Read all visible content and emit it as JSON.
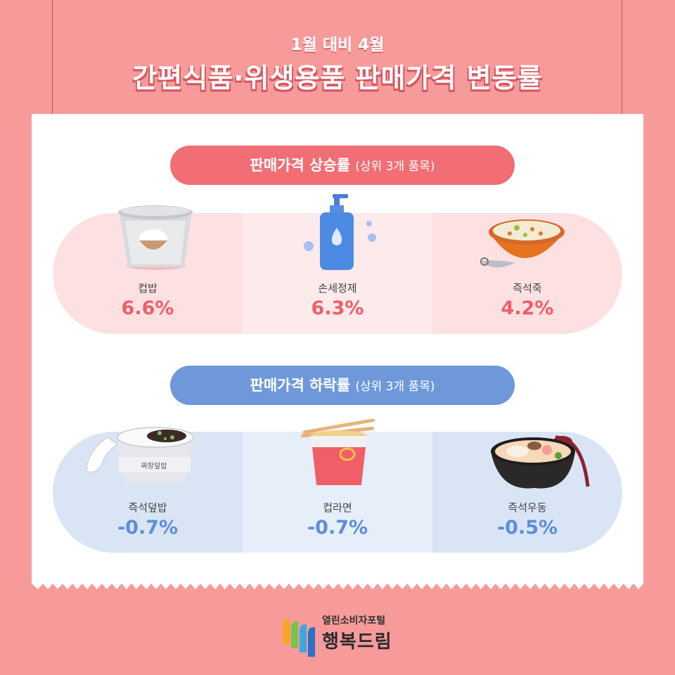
{
  "header": {
    "subtitle": "1월 대비 4월",
    "title": "간편식품·위생용품 판매가격 변동률"
  },
  "sections": {
    "increase": {
      "label": "판매가격 상승률",
      "note": "(상위 3개 품목)",
      "color": "#f06e74",
      "items": [
        {
          "name": "컵밥",
          "value": "6.6%",
          "icon": "cup-rice-icon"
        },
        {
          "name": "손세정제",
          "value": "6.3%",
          "icon": "hand-soap-icon"
        },
        {
          "name": "즉석죽",
          "value": "4.2%",
          "icon": "porridge-bowl-icon"
        }
      ]
    },
    "decrease": {
      "label": "판매가격 하락률",
      "note": "(상위 3개 품목)",
      "color": "#6e98da",
      "items": [
        {
          "name": "즉석덮밥",
          "value": "-0.7%",
          "icon": "rice-bowl-icon",
          "package_label": "짜장덮밥"
        },
        {
          "name": "컵라면",
          "value": "-0.7%",
          "icon": "cup-noodle-icon"
        },
        {
          "name": "즉석우동",
          "value": "-0.5%",
          "icon": "udon-bowl-icon"
        }
      ]
    }
  },
  "footer": {
    "brand_small": "열린소비자포털",
    "brand_large": "행복드림"
  }
}
